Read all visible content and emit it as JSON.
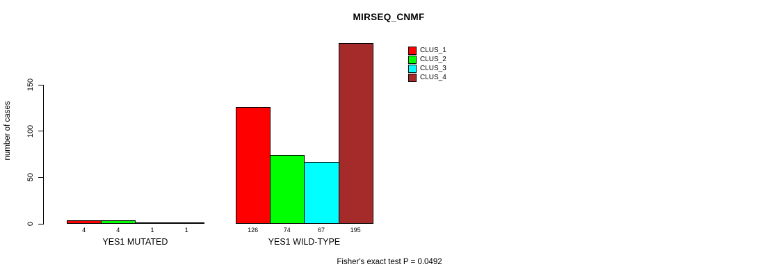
{
  "chart_data": {
    "type": "bar",
    "title": "MIRSEQ_CNMF",
    "ylabel": "number of cases",
    "yticks": [
      0,
      50,
      100,
      150
    ],
    "ylim": [
      0,
      200
    ],
    "grid": false,
    "legend_position": "top-right",
    "series": [
      {
        "name": "CLUS_1",
        "color": "#FF0000"
      },
      {
        "name": "CLUS_2",
        "color": "#00FF00"
      },
      {
        "name": "CLUS_3",
        "color": "#00FFFF"
      },
      {
        "name": "CLUS_4",
        "color": "#A52A2A"
      }
    ],
    "groups": [
      {
        "label": "YES1 MUTATED",
        "values": [
          4,
          4,
          1,
          1
        ]
      },
      {
        "label": "YES1 WILD-TYPE",
        "values": [
          126,
          74,
          67,
          195
        ]
      }
    ],
    "footnote": "Fisher's exact test P = 0.0492"
  }
}
